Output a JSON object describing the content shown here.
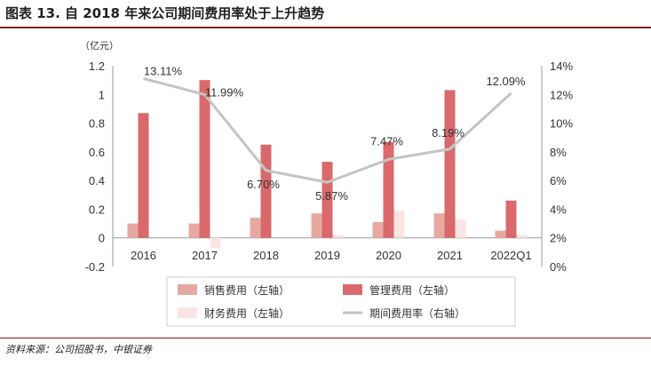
{
  "figure": {
    "title": "图表 13. 自 2018 年来公司期间费用率处于上升趋势",
    "source": "资料来源：公司招股书，中银证券"
  },
  "chart_data": {
    "type": "bar",
    "categories": [
      "2016",
      "2017",
      "2018",
      "2019",
      "2020",
      "2021",
      "2022Q1"
    ],
    "left_axis": {
      "unit": "（亿元）",
      "ylim": [
        -0.2,
        1.2
      ],
      "ticks": [
        "-0.2",
        "0",
        "0.2",
        "0.4",
        "0.6",
        "0.8",
        "1",
        "1.2"
      ]
    },
    "right_axis": {
      "ylim": [
        0,
        14
      ],
      "ticks": [
        "0%",
        "2%",
        "4%",
        "6%",
        "8%",
        "10%",
        "12%",
        "14%"
      ]
    },
    "series": [
      {
        "name": "销售费用（左轴）",
        "type": "bar",
        "axis": "left",
        "color": "#e8a8a2",
        "values": [
          0.1,
          0.1,
          0.14,
          0.17,
          0.11,
          0.17,
          0.05
        ]
      },
      {
        "name": "管理费用（左轴）",
        "type": "bar",
        "axis": "left",
        "color": "#d9696b",
        "values": [
          0.87,
          1.1,
          0.65,
          0.53,
          0.67,
          1.03,
          0.26
        ]
      },
      {
        "name": "财务费用（左轴）",
        "type": "bar",
        "axis": "left",
        "color": "#fbe5e3",
        "values": [
          0.0,
          -0.07,
          0.0,
          0.02,
          0.19,
          0.13,
          0.02
        ]
      },
      {
        "name": "期间费用率（右轴）",
        "type": "line",
        "axis": "right",
        "color": "#c4c4c4",
        "values": [
          13.11,
          11.99,
          6.7,
          5.87,
          7.47,
          8.19,
          12.09
        ],
        "labels": [
          "13.11%",
          "11.99%",
          "6.70%",
          "5.87%",
          "7.47%",
          "8.19%",
          "12.09%"
        ]
      }
    ],
    "grid": false,
    "legend_position": "bottom"
  }
}
